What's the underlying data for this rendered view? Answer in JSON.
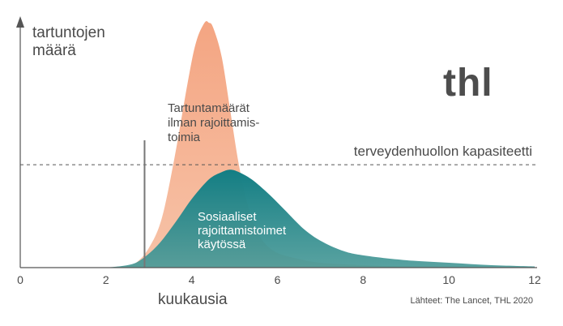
{
  "chart_data": {
    "type": "area",
    "title": "",
    "ylabel_lines": [
      "tartuntojen",
      "määrä"
    ],
    "xlabel": "kuukausia",
    "xlim": [
      0,
      12
    ],
    "ylim": [
      0,
      1
    ],
    "x_ticks": [
      0,
      2,
      4,
      6,
      8,
      10,
      12
    ],
    "grid": false,
    "logo": "thl",
    "source": "Lähteet: The Lancet, THL 2020",
    "capacity": {
      "label": "terveydenhuollon kapasiteetti",
      "value": 0.42,
      "style": "dashed"
    },
    "marker": {
      "x": 2.9,
      "y_top": 0.52
    },
    "series": [
      {
        "name_lines": [
          "Tartuntamäärät",
          "ilman rajoittamis-",
          "toimia"
        ],
        "color": "#f4a582",
        "x": [
          2.0,
          2.4,
          2.7,
          3.0,
          3.3,
          3.6,
          3.9,
          4.1,
          4.3,
          4.4,
          4.5,
          4.7,
          4.9,
          5.1,
          5.3,
          5.5,
          5.7,
          6.0,
          6.5,
          7.0,
          8.0,
          9.0,
          12.0
        ],
        "y": [
          0.0,
          0.005,
          0.02,
          0.08,
          0.2,
          0.45,
          0.75,
          0.92,
          1.0,
          1.0,
          0.98,
          0.86,
          0.64,
          0.42,
          0.26,
          0.16,
          0.1,
          0.06,
          0.035,
          0.02,
          0.01,
          0.005,
          0.0
        ]
      },
      {
        "name_lines": [
          "Sosiaaliset",
          "rajoittamistoimet",
          "käytössä"
        ],
        "color": "#1a8a8f",
        "x": [
          2.0,
          2.5,
          2.8,
          3.2,
          3.6,
          4.0,
          4.4,
          4.7,
          4.9,
          5.1,
          5.4,
          5.8,
          6.2,
          6.6,
          7.0,
          7.5,
          8.0,
          9.0,
          10.0,
          11.0,
          12.0
        ],
        "y": [
          0.0,
          0.01,
          0.03,
          0.09,
          0.18,
          0.28,
          0.36,
          0.39,
          0.4,
          0.39,
          0.36,
          0.3,
          0.23,
          0.16,
          0.11,
          0.07,
          0.05,
          0.03,
          0.02,
          0.01,
          0.005
        ]
      }
    ]
  }
}
